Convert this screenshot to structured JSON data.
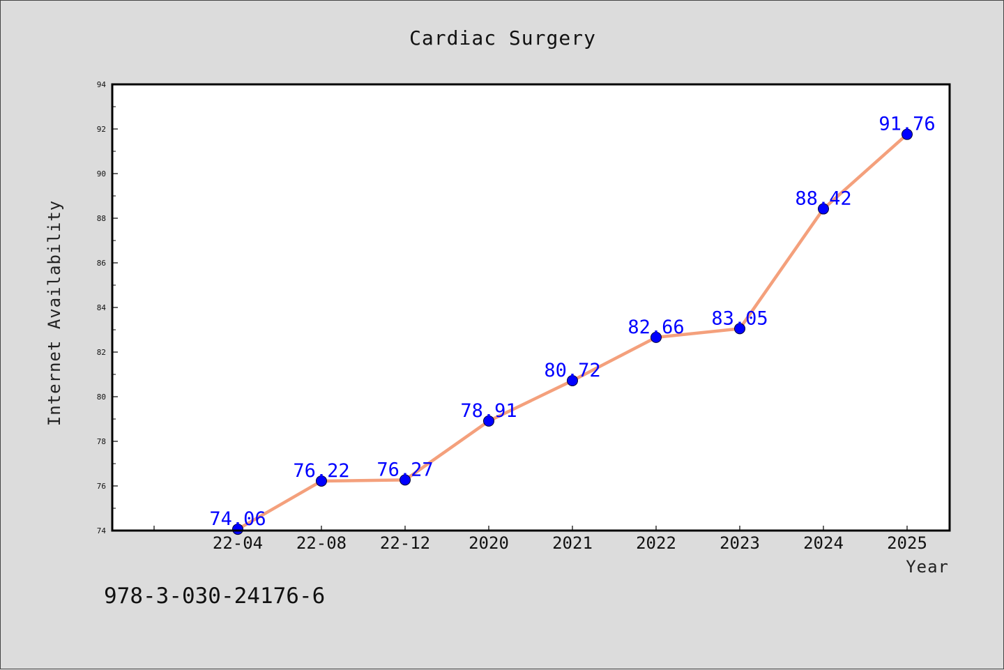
{
  "chart_data": {
    "type": "line",
    "title": "Cardiac Surgery",
    "xlabel": "Year",
    "ylabel": "Internet Availability",
    "categories": [
      "22-04",
      "22-08",
      "22-12",
      "2020",
      "2021",
      "2022",
      "2023",
      "2024",
      "2025"
    ],
    "series": [
      {
        "values": [
          74.06,
          76.22,
          76.27,
          78.91,
          80.72,
          82.66,
          83.05,
          88.42,
          91.76
        ],
        "labels": [
          "74.06",
          "76.22",
          "76.27",
          "78.91",
          "80.72",
          "82.66",
          "83.05",
          "88.42",
          "91.76"
        ]
      }
    ],
    "ylim": [
      74,
      94
    ],
    "yticks": [
      74,
      76,
      78,
      80,
      82,
      84,
      86,
      88,
      90,
      92,
      94
    ],
    "grid": false,
    "line_color": "#f4a07c",
    "marker_color": "#0000ff",
    "label_color": "#0000ff",
    "background_color": "#dcdcdc",
    "plot_background": "#ffffff"
  },
  "footnote": "978-3-030-24176-6"
}
